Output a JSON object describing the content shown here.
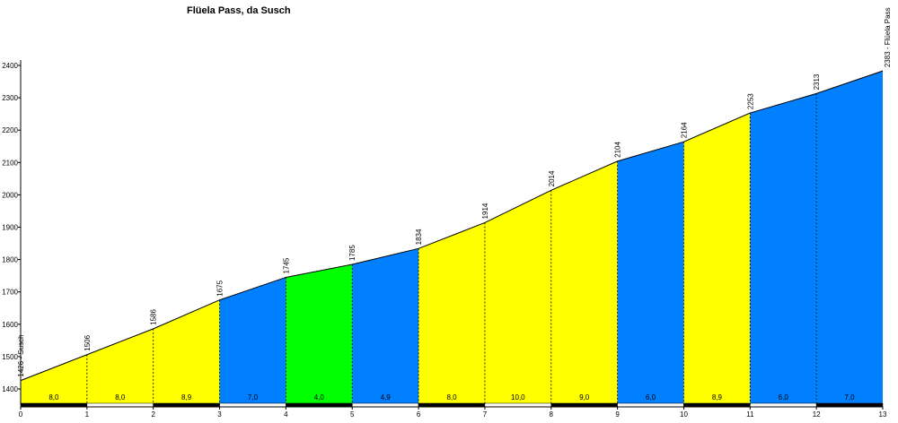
{
  "chart_data": {
    "type": "elevation-profile",
    "title": "Flüela Pass, da Susch",
    "x": [
      0,
      1,
      2,
      3,
      4,
      5,
      6,
      7,
      8,
      9,
      10,
      11,
      12,
      13
    ],
    "elevation": {
      "values": [
        1426,
        1506,
        1586,
        1675,
        1745,
        1785,
        1834,
        1914,
        2014,
        2104,
        2164,
        2253,
        2313,
        2383
      ],
      "value_labels": [
        "1426 - Susch",
        "1506",
        "1586",
        "1675",
        "1745",
        "1785",
        "1834",
        "1914",
        "2014",
        "2104",
        "2164",
        "2253",
        "2313",
        "2383 - Flüela Pass"
      ],
      "color": "#000000"
    },
    "gradient": {
      "values": [
        8.0,
        8.0,
        8.9,
        7.0,
        4.0,
        4.9,
        8.0,
        10.0,
        9.0,
        6.0,
        8.9,
        6.0,
        7.0
      ],
      "value_labels": [
        "8,0",
        "8,0",
        "8,9",
        "7,0",
        "4,0",
        "4,9",
        "8,0",
        "10,0",
        "9,0",
        "6,0",
        "8,9",
        "6,0",
        "7,0"
      ],
      "colors": [
        "#ffff00",
        "#ffff00",
        "#ffff00",
        "#0080ff",
        "#00ff00",
        "#0080ff",
        "#ffff00",
        "#ffff00",
        "#ffff00",
        "#0080ff",
        "#ffff00",
        "#0080ff",
        "#0080ff"
      ]
    },
    "xlim": [
      0,
      13
    ],
    "xticks": [
      0,
      1,
      2,
      3,
      4,
      5,
      6,
      7,
      8,
      9,
      10,
      11,
      12,
      13
    ],
    "ylim": [
      1350,
      2400
    ],
    "yticks": [
      1400,
      1500,
      1600,
      1700,
      1800,
      1900,
      2000,
      2100,
      2200,
      2300,
      2400
    ]
  }
}
